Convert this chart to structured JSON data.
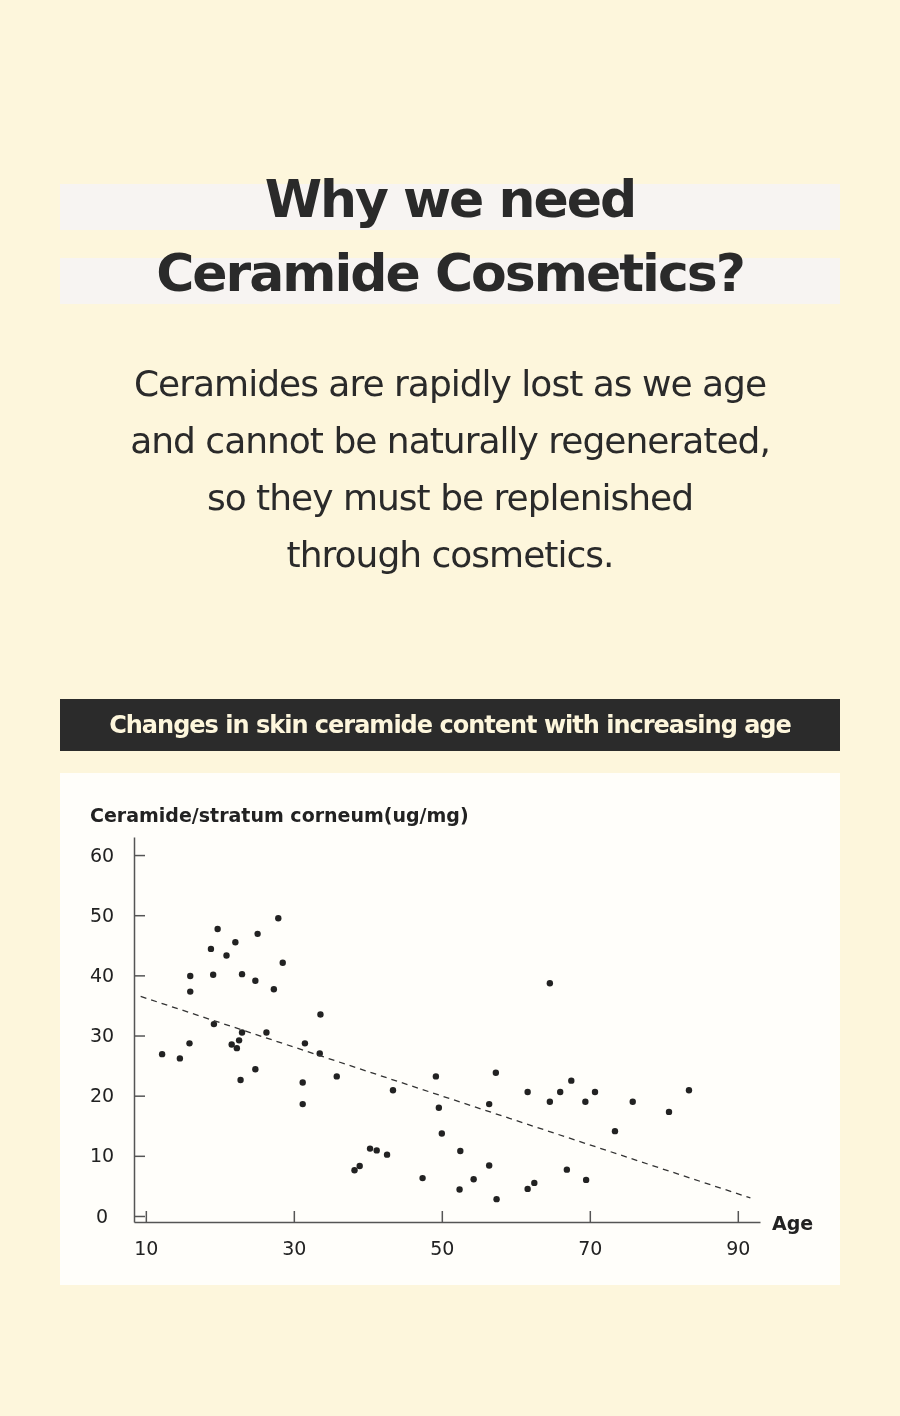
{
  "chart_data": {
    "type": "scatter",
    "title": "Why we need\nCeramide Cosmetics?",
    "subtitle": "Ceramides are rapidly lost as we age\nand cannot be naturally regenerated,\nso they must be replenished\nthrough cosmetics.",
    "annotations": [
      "Changes in skin ceramide content with increasing age"
    ],
    "xlabel": "Age",
    "ylabel": "Ceramide/stratum corneum(ug/mg)",
    "xlim": [
      8.4,
      93
    ],
    "xticks": [
      10,
      30,
      50,
      70,
      90
    ],
    "ylim": [
      -1,
      63
    ],
    "yticks": [
      0,
      10,
      20,
      30,
      40,
      50,
      60
    ],
    "grid": false,
    "series": [
      {
        "color": "#222222",
        "marker": "circle",
        "x": [
          12.2,
          14.6,
          15.9,
          16.0,
          16.0,
          18.8,
          19.1,
          19.2,
          19.7,
          20.9,
          21.6,
          22.1,
          22.3,
          22.6,
          23.0,
          23.0,
          22.8,
          24.8,
          24.8,
          25.1,
          26.3,
          27.3,
          27.9,
          28.5,
          31.2,
          31.2,
          31.5,
          33.5,
          33.6,
          35.8,
          38.2,
          38.9,
          40.3,
          41.2,
          42.6,
          43.4,
          47.4,
          49.2,
          49.6,
          50.0,
          52.4,
          52.5,
          54.3,
          56.4,
          56.4,
          57.3,
          57.4,
          61.6,
          61.6,
          62.5,
          64.6,
          64.6,
          66.0,
          66.9,
          67.5,
          69.4,
          69.5,
          70.7,
          73.4,
          75.8,
          80.7,
          83.4
        ],
        "values": [
          26.9,
          26.2,
          28.7,
          37.3,
          39.9,
          44.4,
          40.1,
          31.9,
          47.7,
          43.3,
          28.5,
          45.5,
          27.9,
          29.2,
          30.5,
          40.2,
          22.6,
          24.4,
          39.1,
          46.9,
          30.5,
          37.7,
          49.5,
          42.1,
          22.2,
          18.6,
          28.7,
          27.0,
          33.5,
          23.2,
          7.6,
          8.3,
          11.2,
          10.9,
          10.2,
          20.9,
          6.3,
          23.2,
          18.0,
          13.7,
          4.4,
          10.8,
          6.1,
          18.6,
          8.4,
          23.8,
          2.8,
          20.6,
          4.5,
          5.5,
          38.7,
          19.0,
          20.6,
          7.7,
          22.5,
          19.0,
          6.0,
          20.6,
          14.1,
          19.0,
          17.3,
          20.9
        ]
      },
      {
        "type": "line",
        "color": "#333333",
        "marker": "none",
        "line_style": "dashed",
        "x": [
          9.3,
          91.7
        ],
        "values": [
          36.5,
          3.0
        ]
      }
    ]
  }
}
